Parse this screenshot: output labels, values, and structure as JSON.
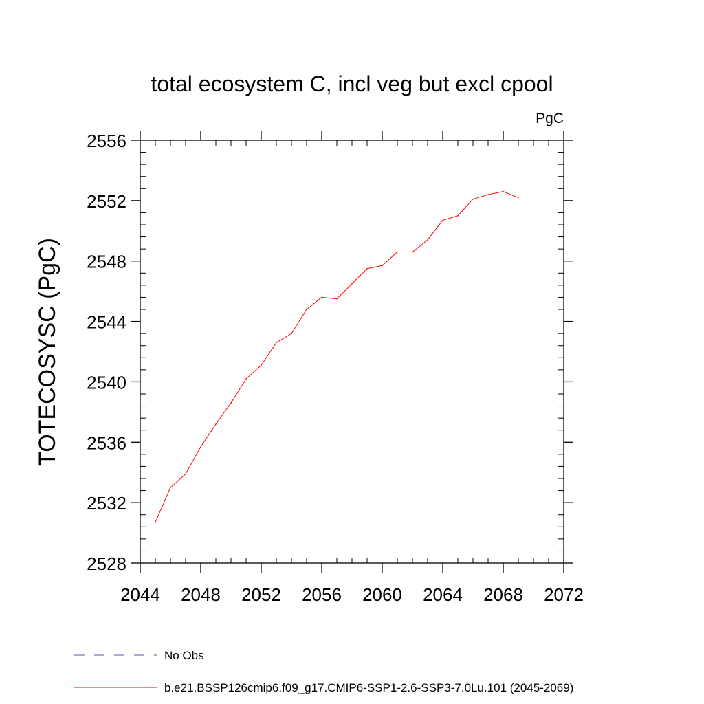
{
  "chart_data": {
    "type": "line",
    "title": "total ecosystem C, incl veg but excl cpool",
    "units": "PgC",
    "xlabel": "",
    "ylabel": "TOTECOSYSC  (PgC)",
    "xlim": [
      2044,
      2072
    ],
    "ylim": [
      2528,
      2556
    ],
    "xticks": [
      2044,
      2048,
      2052,
      2056,
      2060,
      2064,
      2068,
      2072
    ],
    "yticks": [
      2528,
      2532,
      2536,
      2540,
      2544,
      2548,
      2552,
      2556
    ],
    "x_minor_step": 1,
    "y_minor_step": 0.8,
    "series": [
      {
        "name": "b.e21.BSSP126cmip6.f09_g17.CMIP6-SSP1-2.6-SSP3-7.0Lu.101 (2045-2069)",
        "color": "#ff0000",
        "style": "solid",
        "x": [
          2045,
          2046,
          2047,
          2048,
          2049,
          2050,
          2051,
          2052,
          2053,
          2054,
          2055,
          2056,
          2057,
          2058,
          2059,
          2060,
          2061,
          2062,
          2063,
          2064,
          2065,
          2066,
          2067,
          2068,
          2069
        ],
        "values": [
          2530.7,
          2533.0,
          2533.9,
          2535.7,
          2537.2,
          2538.6,
          2540.2,
          2541.1,
          2542.6,
          2543.2,
          2544.8,
          2545.6,
          2545.5,
          2546.5,
          2547.5,
          2547.7,
          2548.6,
          2548.6,
          2549.4,
          2550.7,
          2551.0,
          2552.1,
          2552.4,
          2552.6,
          2552.2
        ]
      }
    ],
    "legend": [
      {
        "label": "No Obs",
        "color": "#5a4fa8",
        "style": "dashed"
      },
      {
        "label": "b.e21.BSSP126cmip6.f09_g17.CMIP6-SSP1-2.6-SSP3-7.0Lu.101 (2045-2069)",
        "color": "#ff0000",
        "style": "solid"
      }
    ],
    "legend_position": "bottom-left"
  }
}
